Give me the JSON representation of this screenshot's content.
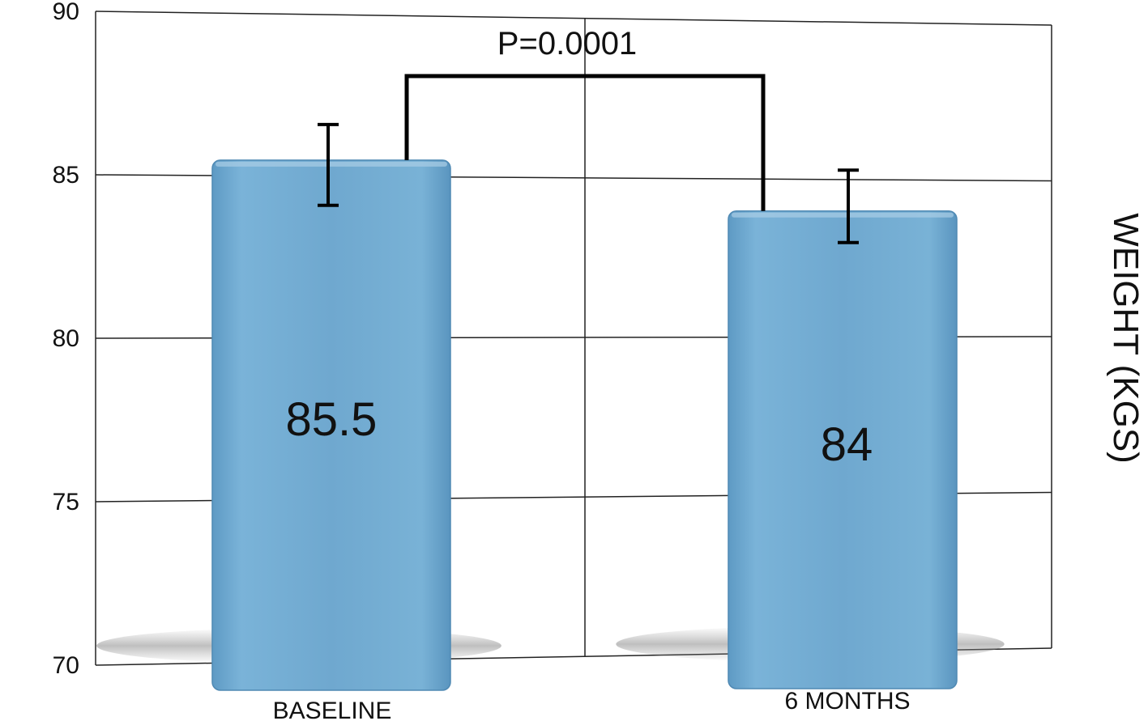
{
  "chart_data": {
    "type": "bar",
    "categories": [
      "BASELINE",
      "6 MONTHS"
    ],
    "values": [
      85.5,
      84
    ],
    "value_labels": [
      "85.5",
      "84"
    ],
    "error_bars": [
      {
        "upper": 86.6,
        "lower": 84.1
      },
      {
        "upper": 85.3,
        "lower": 83.0
      }
    ],
    "annotation": "P=0.0001",
    "ylabel": "WEIGHT (KGS)",
    "yticks": [
      "70",
      "75",
      "80",
      "85",
      "90"
    ],
    "ylim": [
      70,
      90
    ],
    "grid": true,
    "bar_color": "#6fa8cf"
  }
}
